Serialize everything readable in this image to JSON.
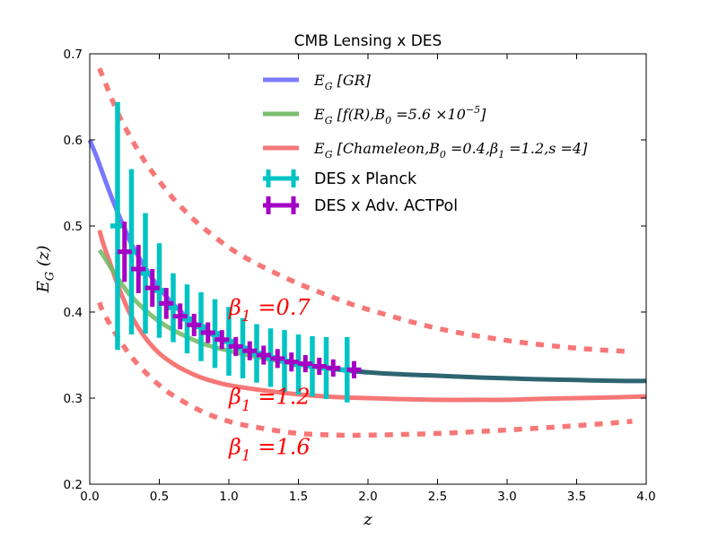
{
  "chart_data": {
    "type": "line",
    "title": "CMB Lensing x DES",
    "xlabel": "z",
    "ylabel": "E_G (z)",
    "xlim": [
      0.0,
      4.0
    ],
    "ylim": [
      0.2,
      0.7
    ],
    "xticks": [
      "0.0",
      "0.5",
      "1.0",
      "1.5",
      "2.0",
      "2.5",
      "3.0",
      "3.5",
      "4.0"
    ],
    "yticks": [
      "0.2",
      "0.3",
      "0.4",
      "0.5",
      "0.6",
      "0.7"
    ],
    "grid": false,
    "legend_position": "top-right",
    "series": [
      {
        "name": "E_G [GR]",
        "legend_label": "E_G [GR]",
        "color": "#4b4bff",
        "style": "solid",
        "x": [
          0.0,
          0.05,
          0.1,
          0.15,
          0.2,
          0.25,
          0.3,
          0.4,
          0.5,
          0.6,
          0.7,
          0.8,
          0.9,
          1.0,
          1.1,
          1.2,
          1.3,
          1.4,
          1.5,
          1.6,
          1.7,
          1.8,
          1.9,
          2.0
        ],
        "y": [
          0.6,
          0.58,
          0.558,
          0.536,
          0.516,
          0.497,
          0.479,
          0.451,
          0.428,
          0.409,
          0.394,
          0.382,
          0.372,
          0.364,
          0.357,
          0.352,
          0.347,
          0.343,
          0.34,
          0.337,
          0.335,
          0.333,
          0.331,
          0.33
        ]
      },
      {
        "name": "E_G [f(R), B_0 = 5.6 x 10^-5]",
        "legend_label": "E_G [f(R),B_0 =5.6 ×10^−5]",
        "color": "#6fb862",
        "style": "solid",
        "x": [
          0.07,
          0.1,
          0.15,
          0.2,
          0.25,
          0.3,
          0.4,
          0.5,
          0.6,
          0.7,
          0.8,
          0.9,
          1.0,
          1.2,
          1.4,
          1.6
        ],
        "y": [
          0.472,
          0.465,
          0.452,
          0.44,
          0.428,
          0.418,
          0.402,
          0.389,
          0.379,
          0.371,
          0.364,
          0.359,
          0.355,
          0.348,
          0.342,
          0.338
        ]
      },
      {
        "name": "E_G [Chameleon, B_0 = 0.4, beta_1 = 1.2, s = 4]",
        "legend_label": "E_G [Chameleon,B_0 =0.4,β_1 =1.2,s =4]",
        "color": "#f77777",
        "style": "solid",
        "x": [
          0.07,
          0.1,
          0.15,
          0.2,
          0.25,
          0.3,
          0.4,
          0.5,
          0.6,
          0.7,
          0.8,
          0.9,
          1.0,
          1.2,
          1.4,
          1.6,
          1.8,
          2.0,
          2.2,
          2.5,
          2.8,
          3.0,
          3.2,
          3.5,
          3.8,
          4.0
        ],
        "y": [
          0.495,
          0.478,
          0.455,
          0.432,
          0.412,
          0.395,
          0.37,
          0.352,
          0.34,
          0.331,
          0.324,
          0.319,
          0.315,
          0.31,
          0.306,
          0.303,
          0.301,
          0.3,
          0.299,
          0.298,
          0.298,
          0.298,
          0.299,
          0.3,
          0.301,
          0.302
        ]
      },
      {
        "name": "GR high-z",
        "color": "#2d6470",
        "style": "solid",
        "x": [
          1.6,
          1.8,
          2.0,
          2.2,
          2.5,
          2.8,
          3.0,
          3.2,
          3.5,
          3.8,
          4.0
        ],
        "y": [
          0.337,
          0.333,
          0.33,
          0.328,
          0.326,
          0.324,
          0.323,
          0.322,
          0.321,
          0.32,
          0.32
        ]
      },
      {
        "name": "beta_1 = 0.7",
        "color": "#f77777",
        "style": "dashed",
        "x": [
          0.07,
          0.1,
          0.2,
          0.3,
          0.4,
          0.5,
          0.6,
          0.7,
          0.8,
          1.0,
          1.2,
          1.5,
          1.8,
          2.0,
          2.5,
          3.0,
          3.5,
          3.9
        ],
        "y": [
          0.683,
          0.671,
          0.632,
          0.601,
          0.574,
          0.552,
          0.532,
          0.515,
          0.5,
          0.475,
          0.456,
          0.433,
          0.414,
          0.403,
          0.381,
          0.367,
          0.358,
          0.354
        ]
      },
      {
        "name": "beta_1 = 1.6",
        "color": "#f77777",
        "style": "dashed",
        "x": [
          0.07,
          0.1,
          0.2,
          0.3,
          0.4,
          0.5,
          0.6,
          0.8,
          1.0,
          1.2,
          1.5,
          1.8,
          2.0,
          2.5,
          3.0,
          3.5,
          3.9
        ],
        "y": [
          0.411,
          0.399,
          0.371,
          0.348,
          0.33,
          0.315,
          0.303,
          0.285,
          0.273,
          0.266,
          0.259,
          0.257,
          0.257,
          0.259,
          0.263,
          0.268,
          0.273
        ]
      }
    ],
    "error_series": [
      {
        "name": "DES x Planck",
        "color": "#00c4c4",
        "x": [
          0.2,
          0.3,
          0.4,
          0.5,
          0.6,
          0.7,
          0.8,
          0.9,
          1.0,
          1.1,
          1.2,
          1.3,
          1.4,
          1.5,
          1.6,
          1.7,
          1.85
        ],
        "y": [
          0.5,
          0.47,
          0.445,
          0.425,
          0.405,
          0.392,
          0.383,
          0.375,
          0.366,
          0.358,
          0.352,
          0.347,
          0.343,
          0.339,
          0.337,
          0.335,
          0.333
        ],
        "yerr": [
          0.144,
          0.096,
          0.07,
          0.055,
          0.04,
          0.04,
          0.04,
          0.04,
          0.04,
          0.035,
          0.034,
          0.034,
          0.036,
          0.035,
          0.035,
          0.036,
          0.038
        ]
      },
      {
        "name": "DES x Adv. ACTPol",
        "color": "#a400c4",
        "x": [
          0.25,
          0.35,
          0.45,
          0.55,
          0.65,
          0.75,
          0.85,
          0.95,
          1.05,
          1.15,
          1.25,
          1.35,
          1.45,
          1.55,
          1.65,
          1.75,
          1.9
        ],
        "y": [
          0.47,
          0.45,
          0.428,
          0.41,
          0.395,
          0.385,
          0.376,
          0.368,
          0.36,
          0.355,
          0.35,
          0.346,
          0.342,
          0.34,
          0.337,
          0.335,
          0.333
        ],
        "yerr": [
          0.035,
          0.028,
          0.022,
          0.018,
          0.015,
          0.013,
          0.012,
          0.011,
          0.011,
          0.011,
          0.011,
          0.011,
          0.011,
          0.01,
          0.01,
          0.01,
          0.01
        ]
      }
    ],
    "annotations": [
      {
        "text": "β_1 =0.7",
        "x": 1.0,
        "y": 0.397,
        "color": "#ff0000"
      },
      {
        "text": "β_1 =1.2",
        "x": 1.0,
        "y": 0.293,
        "color": "#ff0000"
      },
      {
        "text": "β_1 =1.6",
        "x": 1.0,
        "y": 0.235,
        "color": "#ff0000"
      }
    ],
    "legend": [
      {
        "label": "E_G [GR]",
        "color": "#7b7bff",
        "kind": "line"
      },
      {
        "label": "E_G [f(R),B_0 =5.6 ×10^−5]",
        "color": "#7dbe70",
        "kind": "line"
      },
      {
        "label": "E_G [Chameleon,B_0 =0.4,β_1 =1.2,s =4]",
        "color": "#f77777",
        "kind": "line"
      },
      {
        "label": "DES x Planck",
        "color": "#00c4c4",
        "kind": "errorbar"
      },
      {
        "label": "DES x Adv. ACTPol",
        "color": "#a400c4",
        "kind": "errorbar"
      }
    ]
  }
}
